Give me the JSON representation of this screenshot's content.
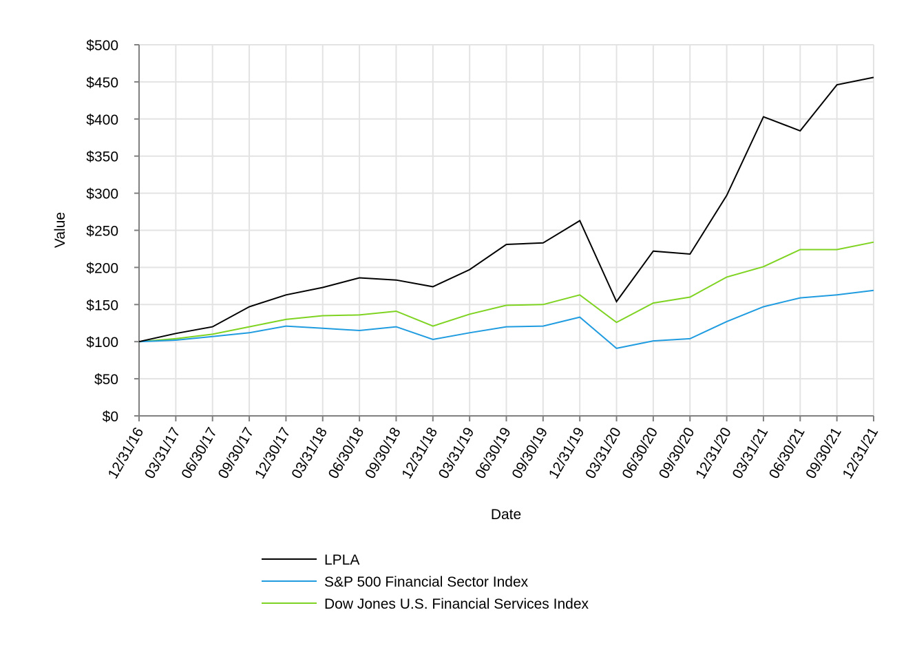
{
  "chart_data": {
    "type": "line",
    "title": "",
    "xlabel": "Date",
    "ylabel": "Value",
    "ylim": [
      0,
      500
    ],
    "y_step": 50,
    "y_tick_labels": [
      "$0",
      "$50",
      "$100",
      "$150",
      "$200",
      "$250",
      "$300",
      "$350",
      "$400",
      "$450",
      "$500"
    ],
    "grid": true,
    "legend_position": "bottom-center",
    "categories": [
      "12/31/16",
      "03/31/17",
      "06/30/17",
      "09/30/17",
      "12/30/17",
      "03/31/18",
      "06/30/18",
      "09/30/18",
      "12/31/18",
      "03/31/19",
      "06/30/19",
      "09/30/19",
      "12/31/19",
      "03/31/20",
      "06/30/20",
      "09/30/20",
      "12/31/20",
      "03/31/21",
      "06/30/21",
      "09/30/21",
      "12/31/21"
    ],
    "series": [
      {
        "name": "LPLA",
        "color": "#000000",
        "values": [
          100,
          111,
          120,
          147,
          163,
          173,
          186,
          183,
          174,
          197,
          231,
          233,
          263,
          154,
          222,
          218,
          297,
          403,
          384,
          446,
          456
        ]
      },
      {
        "name": "S&P 500 Financial Sector Index",
        "color": "#1f9be0",
        "values": [
          100,
          102,
          107,
          112,
          121,
          118,
          115,
          120,
          103,
          112,
          120,
          121,
          133,
          91,
          101,
          104,
          127,
          147,
          159,
          163,
          169
        ]
      },
      {
        "name": "Dow Jones U.S. Financial Services Index",
        "color": "#7ed321",
        "values": [
          100,
          104,
          110,
          120,
          130,
          135,
          136,
          141,
          121,
          137,
          149,
          150,
          163,
          126,
          152,
          160,
          187,
          201,
          224,
          224,
          234
        ]
      }
    ]
  }
}
